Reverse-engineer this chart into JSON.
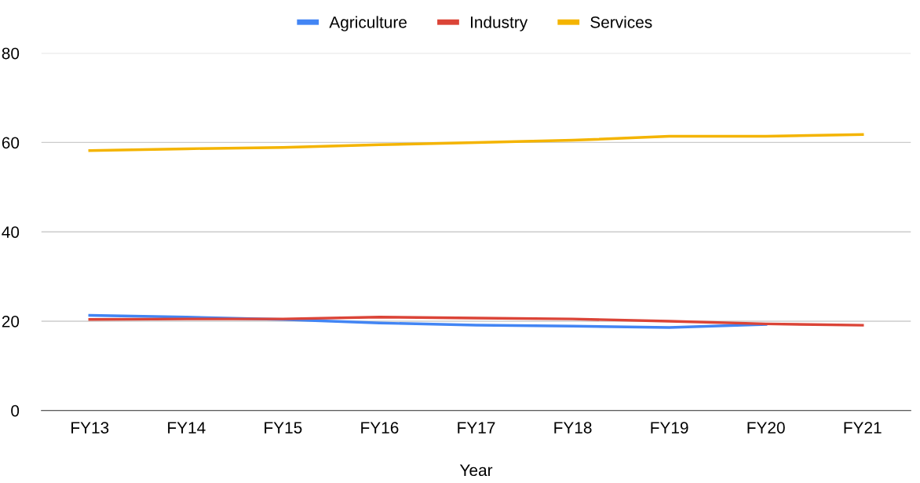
{
  "chart_data": {
    "type": "line",
    "xlabel": "Year",
    "categories": [
      "FY13",
      "FY14",
      "FY15",
      "FY16",
      "FY17",
      "FY18",
      "FY19",
      "FY20",
      "FY21"
    ],
    "series": [
      {
        "name": "Agriculture",
        "color": "#4285f4",
        "values": [
          21.3,
          20.9,
          20.4,
          19.6,
          19.1,
          18.9,
          18.6,
          19.3,
          null
        ]
      },
      {
        "name": "Industry",
        "color": "#db4437",
        "values": [
          20.4,
          20.5,
          20.5,
          20.9,
          20.7,
          20.5,
          20.0,
          19.4,
          19.1
        ]
      },
      {
        "name": "Services",
        "color": "#f4b400",
        "values": [
          58.2,
          58.6,
          58.9,
          59.5,
          60.0,
          60.5,
          61.4,
          61.4,
          61.8
        ]
      }
    ],
    "ylim": [
      0,
      80
    ],
    "yticks": [
      0,
      20,
      40,
      60,
      80
    ],
    "grid": "y",
    "legend": "top",
    "marker": "none",
    "line_style": "solid"
  }
}
